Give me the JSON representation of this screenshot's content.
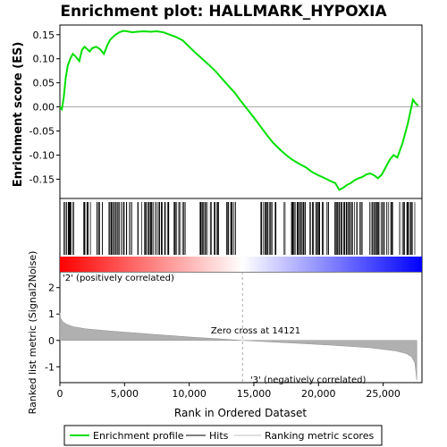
{
  "chart_data": {
    "title": "Enrichment plot: HALLMARK_HYPOXIA",
    "type": "line",
    "top_panel": {
      "ylabel": "Enrichment score (ES)",
      "ylim": [
        -0.19,
        0.17
      ],
      "yticks": [
        0.15,
        0.1,
        0.05,
        0.0,
        -0.05,
        -0.1,
        -0.15
      ],
      "ytick_labels": [
        "0.15",
        "0.10",
        "0.05",
        "0.00",
        "-0.05",
        "-0.10",
        "-0.15"
      ],
      "series": [
        {
          "name": "Enrichment profile",
          "color": "#00e000",
          "x": [
            0,
            150,
            300,
            450,
            600,
            800,
            1000,
            1200,
            1500,
            1700,
            1900,
            2100,
            2300,
            2500,
            2800,
            3100,
            3400,
            3700,
            3900,
            4100,
            4300,
            4600,
            4900,
            5200,
            5600,
            6000,
            6500,
            7000,
            7500,
            8000,
            8500,
            9000,
            9500,
            10000,
            10500,
            11000,
            11500,
            12000,
            12500,
            13000,
            13500,
            14000,
            14500,
            15000,
            15500,
            16000,
            16500,
            17000,
            17500,
            18000,
            18500,
            19000,
            19500,
            20000,
            20500,
            21000,
            21300,
            21600,
            21900,
            22200,
            22500,
            22800,
            23100,
            23400,
            23700,
            24000,
            24300,
            24600,
            24900,
            25200,
            25500,
            25800,
            26100,
            26300,
            26500,
            26700,
            26900,
            27100,
            27300,
            27500,
            27700
          ],
          "y": [
            0.0,
            -0.005,
            0.02,
            0.06,
            0.085,
            0.1,
            0.11,
            0.105,
            0.095,
            0.118,
            0.125,
            0.12,
            0.115,
            0.122,
            0.125,
            0.12,
            0.11,
            0.13,
            0.14,
            0.145,
            0.15,
            0.155,
            0.158,
            0.157,
            0.155,
            0.156,
            0.157,
            0.156,
            0.157,
            0.155,
            0.15,
            0.145,
            0.138,
            0.125,
            0.112,
            0.1,
            0.088,
            0.075,
            0.06,
            0.045,
            0.03,
            0.012,
            -0.005,
            -0.022,
            -0.04,
            -0.058,
            -0.075,
            -0.088,
            -0.1,
            -0.11,
            -0.118,
            -0.125,
            -0.135,
            -0.142,
            -0.148,
            -0.155,
            -0.158,
            -0.172,
            -0.168,
            -0.162,
            -0.158,
            -0.152,
            -0.148,
            -0.145,
            -0.14,
            -0.138,
            -0.142,
            -0.148,
            -0.14,
            -0.125,
            -0.11,
            -0.1,
            -0.105,
            -0.09,
            -0.075,
            -0.055,
            -0.035,
            -0.01,
            0.015,
            0.008,
            0.002
          ]
        }
      ]
    },
    "middle_panel": {
      "hit_ranges": [
        [
          250,
          1200
        ],
        [
          1800,
          2400
        ],
        [
          2800,
          3300
        ],
        [
          3700,
          5600
        ],
        [
          6000,
          8500
        ],
        [
          8800,
          9700
        ],
        [
          10800,
          12500
        ],
        [
          12900,
          13800
        ],
        [
          15500,
          16800
        ],
        [
          17200,
          19000
        ],
        [
          19300,
          20800
        ],
        [
          21200,
          23600
        ],
        [
          23900,
          25800
        ],
        [
          26100,
          27500
        ]
      ],
      "colorbar": {
        "left_color": "#ff0000",
        "right_color": "#0000ff",
        "mid_color": "#ffffff",
        "cross_rank": 14121
      }
    },
    "bottom_panel": {
      "ylabel": "Ranked list metric (Signal2Noise)",
      "ylim": [
        -1.6,
        2.6
      ],
      "yticks": [
        2,
        1,
        0,
        -1
      ],
      "ytick_labels": [
        "2",
        "1",
        "0",
        "-1"
      ],
      "metric_points": {
        "x": [
          0,
          50,
          200,
          500,
          1000,
          2000,
          4000,
          7000,
          10000,
          12000,
          14121,
          16000,
          18000,
          21000,
          24000,
          26000,
          26800,
          27200,
          27450,
          27600
        ],
        "y": [
          1.05,
          0.85,
          0.72,
          0.62,
          0.52,
          0.44,
          0.35,
          0.24,
          0.13,
          0.07,
          0.0,
          -0.05,
          -0.1,
          -0.18,
          -0.28,
          -0.4,
          -0.5,
          -0.62,
          -0.85,
          -1.5
        ]
      },
      "zero_cross_label": "Zero cross at 14121",
      "zero_cross_x": 14121,
      "pos_label": "'2' (positively correlated)",
      "neg_label": "'3' (negatively correlated)",
      "pos_label_color": "#cc0000",
      "neg_label_color": "#0000cc"
    },
    "xlabel": "Rank in Ordered Dataset",
    "xlim": [
      0,
      28000
    ],
    "xticks": [
      0,
      5000,
      10000,
      15000,
      20000,
      25000
    ],
    "xtick_labels": [
      "0",
      "5,000",
      "10,000",
      "15,000",
      "20,000",
      "25,000"
    ],
    "legend": {
      "placement": "bottom",
      "items": [
        {
          "label": "Enrichment profile",
          "color": "#00e000",
          "style": "line"
        },
        {
          "label": "Hits",
          "color": "#000000",
          "style": "line"
        },
        {
          "label": "Ranking metric scores",
          "color": "#c0c0c0",
          "style": "line"
        }
      ]
    }
  }
}
